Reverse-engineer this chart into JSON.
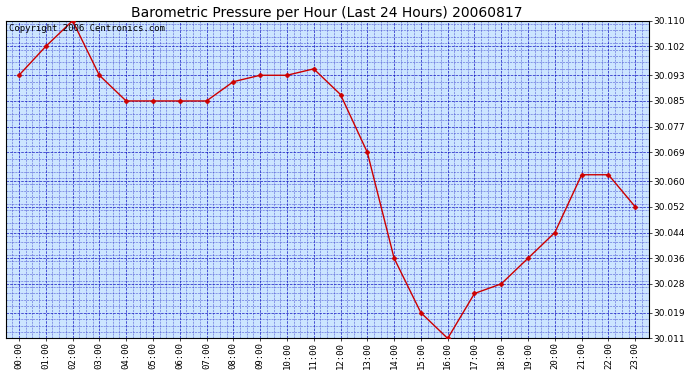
{
  "title": "Barometric Pressure per Hour (Last 24 Hours) 20060817",
  "copyright": "Copyright 2006 Centronics.com",
  "x_labels": [
    "00:00",
    "01:00",
    "02:00",
    "03:00",
    "04:00",
    "05:00",
    "06:00",
    "07:00",
    "08:00",
    "09:00",
    "10:00",
    "11:00",
    "12:00",
    "13:00",
    "14:00",
    "15:00",
    "16:00",
    "17:00",
    "18:00",
    "19:00",
    "20:00",
    "21:00",
    "22:00",
    "23:00"
  ],
  "y_values": [
    30.093,
    30.102,
    30.11,
    30.093,
    30.085,
    30.085,
    30.085,
    30.085,
    30.091,
    30.093,
    30.093,
    30.095,
    30.087,
    30.069,
    30.036,
    30.019,
    30.011,
    30.025,
    30.028,
    30.036,
    30.044,
    30.062,
    30.062,
    30.052
  ],
  "ylim_min": 30.011,
  "ylim_max": 30.11,
  "yticks": [
    30.011,
    30.019,
    30.028,
    30.036,
    30.044,
    30.052,
    30.06,
    30.069,
    30.077,
    30.085,
    30.093,
    30.102,
    30.11
  ],
  "line_color": "#cc0000",
  "marker_color": "#cc0000",
  "bg_color": "#cce5ff",
  "fig_color": "#ffffff",
  "grid_color": "#0000bb",
  "title_fontsize": 10,
  "tick_fontsize": 6.5,
  "copyright_fontsize": 6.5
}
